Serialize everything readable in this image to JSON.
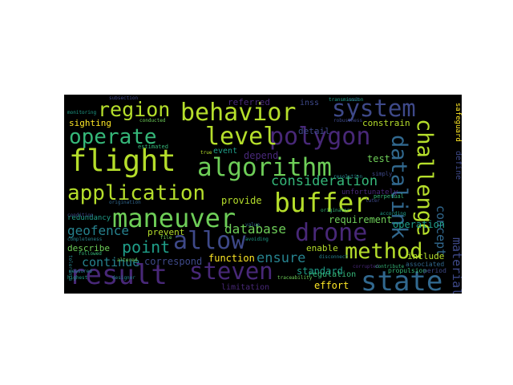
{
  "wordcloud": {
    "words": [
      {
        "text": "flight",
        "color": "#b5de2b"
      },
      {
        "text": "algorithm",
        "color": "#6ece58"
      },
      {
        "text": "behavior",
        "color": "#b5de2b"
      },
      {
        "text": "system",
        "color": "#3e4989"
      },
      {
        "text": "polygon",
        "color": "#482878"
      },
      {
        "text": "buffer",
        "color": "#b5de2b"
      },
      {
        "text": "maneuver",
        "color": "#6ece58"
      },
      {
        "text": "application",
        "color": "#b5de2b"
      },
      {
        "text": "result",
        "color": "#482878"
      },
      {
        "text": "steven",
        "color": "#482878"
      },
      {
        "text": "state",
        "color": "#31688e"
      },
      {
        "text": "allow",
        "color": "#3e4989"
      },
      {
        "text": "drone",
        "color": "#482878"
      },
      {
        "text": "method",
        "color": "#b5de2b"
      },
      {
        "text": "level",
        "color": "#b5de2b"
      },
      {
        "text": "operate",
        "color": "#35b779"
      },
      {
        "text": "region",
        "color": "#b5de2b"
      },
      {
        "text": "challenge",
        "color": "#b5de2b"
      },
      {
        "text": "datalink",
        "color": "#31688e"
      },
      {
        "text": "consideration",
        "color": "#35b779"
      },
      {
        "text": "concept",
        "color": "#31688e"
      },
      {
        "text": "material",
        "color": "#3e4989"
      },
      {
        "text": "geofence",
        "color": "#26828e"
      },
      {
        "text": "point",
        "color": "#1f9e89"
      },
      {
        "text": "database",
        "color": "#6ece58"
      },
      {
        "text": "ensure",
        "color": "#26828e"
      },
      {
        "text": "continue",
        "color": "#26828e"
      },
      {
        "text": "correspond",
        "color": "#3e4989"
      },
      {
        "text": "function",
        "color": "#fde725"
      },
      {
        "text": "standard",
        "color": "#1f9e89"
      },
      {
        "text": "provide",
        "color": "#b5de2b"
      },
      {
        "text": "prevent",
        "color": "#b5de2b"
      },
      {
        "text": "requirement",
        "color": "#6ece58"
      },
      {
        "text": "operation",
        "color": "#1f9e89"
      },
      {
        "text": "define",
        "color": "#3e4989"
      },
      {
        "text": "safeguard",
        "color": "#fde725"
      },
      {
        "text": "constrain",
        "color": "#b5de2b"
      },
      {
        "text": "test",
        "color": "#6ece58"
      },
      {
        "text": "sighting",
        "color": "#fde725"
      },
      {
        "text": "event",
        "color": "#1f9e89"
      },
      {
        "text": "detail",
        "color": "#3e4989"
      },
      {
        "text": "referred",
        "color": "#482878"
      },
      {
        "text": "depend",
        "color": "#482878"
      },
      {
        "text": "redundancy",
        "color": "#1f9e89"
      },
      {
        "text": "describe",
        "color": "#6ece58"
      },
      {
        "text": "enable",
        "color": "#b5de2b"
      },
      {
        "text": "include",
        "color": "#b5de2b"
      },
      {
        "text": "effort",
        "color": "#fde725"
      },
      {
        "text": "regulation",
        "color": "#35b779"
      },
      {
        "text": "limitation",
        "color": "#482878"
      },
      {
        "text": "inss",
        "color": "#3e4989"
      },
      {
        "text": "associated",
        "color": "#31688e"
      },
      {
        "text": "transmission",
        "color": "#1f9e89"
      },
      {
        "text": "traceability",
        "color": "#6ece58"
      },
      {
        "text": "simply",
        "color": "#3e4989"
      },
      {
        "text": "unfortunately",
        "color": "#482878"
      },
      {
        "text": "perpetual",
        "color": "#35b779"
      },
      {
        "text": "propulsion",
        "color": "#35b779"
      },
      {
        "text": "period",
        "color": "#3e4989"
      },
      {
        "text": "estimated",
        "color": "#35b779"
      },
      {
        "text": "subsection",
        "color": "#3e4989"
      },
      {
        "text": "monitoring",
        "color": "#1f9e89"
      },
      {
        "text": "conducted",
        "color": "#6ece58"
      },
      {
        "text": "true",
        "color": "#b5de2b"
      },
      {
        "text": "origination",
        "color": "#31688e"
      },
      {
        "text": "condition",
        "color": "#3e4989"
      },
      {
        "text": "followed",
        "color": "#35b779"
      },
      {
        "text": "altered",
        "color": "#6ece58"
      },
      {
        "text": "file",
        "color": "#6ece58"
      },
      {
        "text": "completeness",
        "color": "#26828e"
      },
      {
        "text": "corrupted",
        "color": "#482878"
      },
      {
        "text": "contribute",
        "color": "#35b779"
      },
      {
        "text": "cost",
        "color": "#31688e"
      },
      {
        "text": "designer",
        "color": "#26828e"
      },
      {
        "text": "tolerance",
        "color": "#26828e"
      },
      {
        "text": "highest",
        "color": "#1f9e89"
      },
      {
        "text": "robustness",
        "color": "#3e4989"
      },
      {
        "text": "originator",
        "color": "#35b779"
      },
      {
        "text": "resolution",
        "color": "#26828e"
      },
      {
        "text": "value",
        "color": "#31688e"
      },
      {
        "text": "avoiding",
        "color": "#1f9e89"
      },
      {
        "text": "disconnect",
        "color": "#26828e"
      },
      {
        "text": "measured",
        "color": "#26828e"
      },
      {
        "text": "according",
        "color": "#1f9e89"
      },
      {
        "text": "later",
        "color": "#3e4989"
      }
    ]
  }
}
